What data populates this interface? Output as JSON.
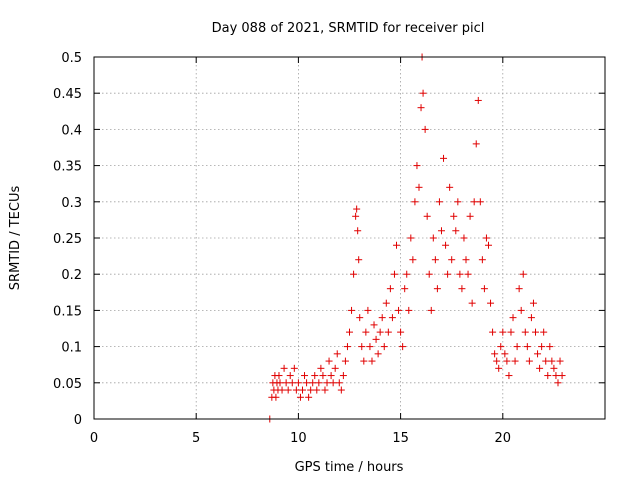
{
  "chart_data": {
    "type": "scatter",
    "title": "Day 088 of 2021, SRMTID for receiver picl",
    "xlabel": "GPS time / hours",
    "ylabel": "SRMTID / TECUs",
    "xlim": [
      0,
      25
    ],
    "ylim": [
      0,
      0.5
    ],
    "xticks": [
      0,
      5,
      10,
      15,
      20
    ],
    "xtick_labels": [
      "0",
      "5",
      "10",
      "15",
      "20"
    ],
    "yticks": [
      0,
      0.05,
      0.1,
      0.15,
      0.2,
      0.25,
      0.3,
      0.35,
      0.4,
      0.45,
      0.5
    ],
    "ytick_labels": [
      "0",
      "0.05",
      "0.1",
      "0.15",
      "0.2",
      "0.25",
      "0.3",
      "0.35",
      "0.4",
      "0.45",
      "0.5"
    ],
    "grid": true,
    "marker": "+",
    "color": "#e00000",
    "series": [
      {
        "name": "SRMTID",
        "x": [
          8.6,
          8.7,
          8.75,
          8.8,
          8.85,
          8.9,
          8.95,
          9.0,
          9.05,
          9.1,
          9.2,
          9.3,
          9.4,
          9.5,
          9.6,
          9.7,
          9.8,
          9.9,
          10.0,
          10.1,
          10.2,
          10.3,
          10.4,
          10.5,
          10.6,
          10.7,
          10.8,
          10.9,
          11.0,
          11.1,
          11.2,
          11.3,
          11.4,
          11.5,
          11.6,
          11.7,
          11.8,
          11.9,
          12.0,
          12.1,
          12.2,
          12.3,
          12.4,
          12.5,
          12.6,
          12.7,
          12.8,
          12.85,
          12.9,
          12.95,
          13.0,
          13.1,
          13.2,
          13.3,
          13.4,
          13.5,
          13.6,
          13.7,
          13.8,
          13.9,
          14.0,
          14.1,
          14.2,
          14.3,
          14.4,
          14.5,
          14.6,
          14.7,
          14.8,
          14.9,
          15.0,
          15.1,
          15.2,
          15.3,
          15.4,
          15.5,
          15.6,
          15.7,
          15.8,
          15.9,
          16.0,
          16.05,
          16.1,
          16.2,
          16.3,
          16.4,
          16.5,
          16.6,
          16.7,
          16.8,
          16.9,
          17.0,
          17.1,
          17.2,
          17.3,
          17.4,
          17.5,
          17.6,
          17.7,
          17.8,
          17.9,
          18.0,
          18.1,
          18.2,
          18.3,
          18.4,
          18.5,
          18.6,
          18.7,
          18.8,
          18.9,
          19.0,
          19.1,
          19.2,
          19.3,
          19.4,
          19.5,
          19.6,
          19.7,
          19.8,
          19.9,
          20.0,
          20.1,
          20.2,
          20.3,
          20.4,
          20.5,
          20.6,
          20.7,
          20.8,
          20.9,
          21.0,
          21.1,
          21.2,
          21.3,
          21.4,
          21.5,
          21.6,
          21.7,
          21.8,
          21.9,
          22.0,
          22.1,
          22.2,
          22.3,
          22.4,
          22.5,
          22.6,
          22.7,
          22.8,
          22.9
        ],
        "y": [
          0.0,
          0.03,
          0.05,
          0.04,
          0.06,
          0.03,
          0.05,
          0.04,
          0.06,
          0.05,
          0.04,
          0.07,
          0.05,
          0.04,
          0.06,
          0.05,
          0.07,
          0.04,
          0.05,
          0.03,
          0.04,
          0.06,
          0.05,
          0.03,
          0.04,
          0.05,
          0.06,
          0.04,
          0.05,
          0.07,
          0.06,
          0.04,
          0.05,
          0.08,
          0.06,
          0.05,
          0.07,
          0.09,
          0.05,
          0.04,
          0.06,
          0.08,
          0.1,
          0.12,
          0.15,
          0.2,
          0.28,
          0.29,
          0.26,
          0.22,
          0.14,
          0.1,
          0.08,
          0.12,
          0.15,
          0.1,
          0.08,
          0.13,
          0.11,
          0.09,
          0.12,
          0.14,
          0.1,
          0.16,
          0.12,
          0.18,
          0.14,
          0.2,
          0.24,
          0.15,
          0.12,
          0.1,
          0.18,
          0.2,
          0.15,
          0.25,
          0.22,
          0.3,
          0.35,
          0.32,
          0.43,
          0.5,
          0.45,
          0.4,
          0.28,
          0.2,
          0.15,
          0.25,
          0.22,
          0.18,
          0.3,
          0.26,
          0.36,
          0.24,
          0.2,
          0.32,
          0.22,
          0.28,
          0.26,
          0.3,
          0.2,
          0.18,
          0.25,
          0.22,
          0.2,
          0.28,
          0.16,
          0.3,
          0.38,
          0.44,
          0.3,
          0.22,
          0.18,
          0.25,
          0.24,
          0.16,
          0.12,
          0.09,
          0.08,
          0.07,
          0.1,
          0.12,
          0.09,
          0.08,
          0.06,
          0.12,
          0.14,
          0.08,
          0.1,
          0.18,
          0.15,
          0.2,
          0.12,
          0.1,
          0.08,
          0.14,
          0.16,
          0.12,
          0.09,
          0.07,
          0.1,
          0.12,
          0.08,
          0.06,
          0.1,
          0.08,
          0.07,
          0.06,
          0.05,
          0.08,
          0.06
        ]
      }
    ]
  }
}
